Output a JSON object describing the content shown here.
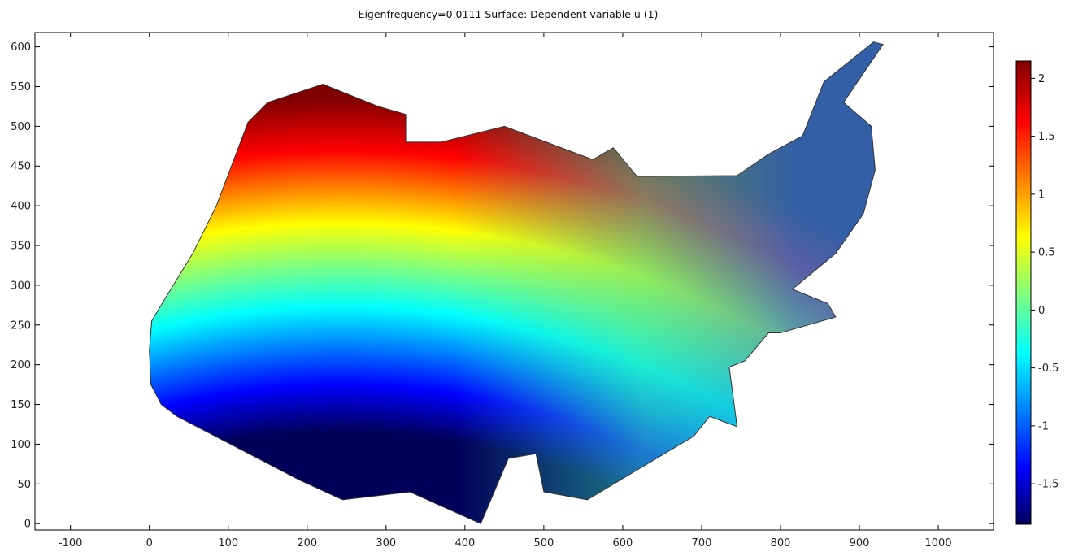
{
  "chart_data": {
    "type": "heatmap",
    "title": "Eigenfrequency=0.0111    Surface: Dependent variable u (1)",
    "xlim": [
      -145,
      1070
    ],
    "ylim": [
      -8,
      618
    ],
    "x_ticks": [
      -100,
      0,
      100,
      200,
      300,
      400,
      500,
      600,
      700,
      800,
      900,
      1000
    ],
    "y_ticks": [
      0,
      50,
      100,
      150,
      200,
      250,
      300,
      350,
      400,
      450,
      500,
      550,
      600
    ],
    "domain_outline": [
      [
        0,
        218
      ],
      [
        3,
        255
      ],
      [
        18,
        280
      ],
      [
        55,
        340
      ],
      [
        85,
        400
      ],
      [
        125,
        505
      ],
      [
        150,
        530
      ],
      [
        220,
        553
      ],
      [
        290,
        525
      ],
      [
        325,
        515
      ],
      [
        325,
        480
      ],
      [
        370,
        480
      ],
      [
        450,
        500
      ],
      [
        562,
        458
      ],
      [
        588,
        473
      ],
      [
        618,
        437
      ],
      [
        745,
        438
      ],
      [
        785,
        465
      ],
      [
        828,
        488
      ],
      [
        855,
        556
      ],
      [
        918,
        606
      ],
      [
        930,
        603
      ],
      [
        880,
        530
      ],
      [
        915,
        500
      ],
      [
        920,
        445
      ],
      [
        905,
        390
      ],
      [
        870,
        340
      ],
      [
        815,
        295
      ],
      [
        860,
        277
      ],
      [
        870,
        260
      ],
      [
        800,
        240
      ],
      [
        785,
        240
      ],
      [
        755,
        205
      ],
      [
        735,
        197
      ],
      [
        745,
        122
      ],
      [
        710,
        135
      ],
      [
        690,
        110
      ],
      [
        555,
        30
      ],
      [
        500,
        40
      ],
      [
        490,
        88
      ],
      [
        455,
        82
      ],
      [
        420,
        0
      ],
      [
        330,
        40
      ],
      [
        245,
        30
      ],
      [
        190,
        55
      ],
      [
        35,
        135
      ],
      [
        15,
        150
      ],
      [
        2,
        175
      ]
    ],
    "colorbar": {
      "min": -1.85,
      "max": 2.15,
      "ticks": [
        2,
        1.5,
        1,
        0.5,
        0,
        -0.5,
        -1,
        -1.5
      ],
      "colormap": "rainbow",
      "colors": [
        "#00005a",
        "#0000ff",
        "#00ffff",
        "#ffff00",
        "#ff0000",
        "#800000"
      ]
    },
    "grid": false,
    "legend": "right"
  }
}
